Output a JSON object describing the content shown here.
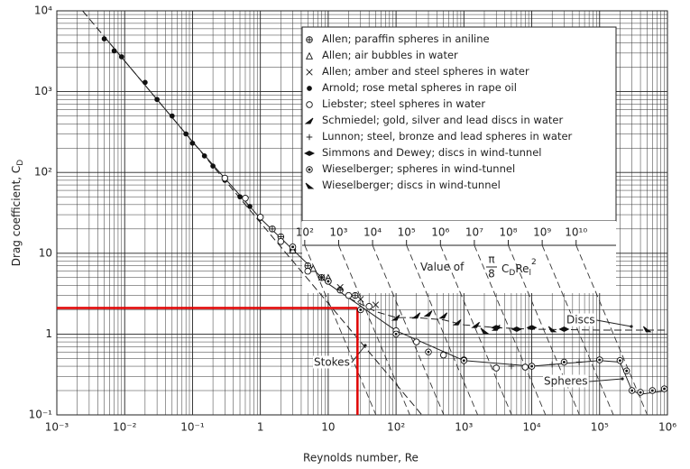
{
  "chart_data": {
    "type": "scatter",
    "xlabel": "Reynolds number, Re",
    "ylabel": "Drag coefficient, C",
    "ylabel_sub": "D",
    "log_x": true,
    "log_y": true,
    "grid": true,
    "minor_grid": true,
    "xlim": [
      0.001,
      1000000
    ],
    "ylim": [
      0.1,
      10000
    ],
    "xticks": [
      {
        "value": 0.001,
        "label": "10⁻³"
      },
      {
        "value": 0.01,
        "label": "10⁻²"
      },
      {
        "value": 0.1,
        "label": "10⁻¹"
      },
      1,
      10,
      {
        "value": 100,
        "label": "10²"
      },
      {
        "value": 1000,
        "label": "10³"
      },
      {
        "value": 10000,
        "label": "10⁴"
      },
      {
        "value": 100000,
        "label": "10⁵"
      },
      {
        "value": 1000000,
        "label": "10⁶"
      }
    ],
    "yticks": [
      {
        "value": 0.1,
        "label": "10⁻¹"
      },
      1,
      10,
      {
        "value": 100,
        "label": "10²"
      },
      {
        "value": 1000,
        "label": "10³"
      },
      {
        "value": 10000,
        "label": "10⁴"
      }
    ],
    "legend": "upper right",
    "series": [
      {
        "name": "Allen; paraffin spheres in aniline",
        "marker": "circle-plus",
        "color": "#111111",
        "x": [
          1.5,
          2,
          3,
          5,
          8,
          15,
          25
        ],
        "values": [
          20,
          16,
          11,
          7,
          5,
          3.5,
          3
        ]
      },
      {
        "name": "Allen; air bubbles in water",
        "marker": "triangle",
        "color": "#111111",
        "x": [
          3,
          6,
          10
        ],
        "values": [
          11,
          6.5,
          5
        ]
      },
      {
        "name": "Allen; amber and steel spheres in water",
        "marker": "x",
        "color": "#111111",
        "x": [
          8,
          15,
          30,
          50
        ],
        "values": [
          5,
          3.8,
          2.7,
          2.3
        ]
      },
      {
        "name": "Arnold; rose metal spheres in rape oil",
        "marker": "dot",
        "color": "#111111",
        "x": [
          0.005,
          0.007,
          0.009,
          0.02,
          0.03,
          0.05,
          0.08,
          0.1,
          0.15,
          0.2,
          0.3,
          0.5,
          0.7,
          1
        ],
        "values": [
          4500,
          3200,
          2700,
          1300,
          800,
          500,
          300,
          230,
          160,
          120,
          80,
          50,
          38,
          27
        ]
      },
      {
        "name": "Liebster; steel spheres in water",
        "marker": "circle",
        "color": "#111111",
        "x": [
          0.3,
          0.6,
          1,
          2,
          5,
          10,
          20,
          40,
          100,
          200,
          500,
          1000,
          3000,
          8000
        ],
        "values": [
          85,
          48,
          28,
          14,
          6,
          4.5,
          3,
          2.2,
          1.1,
          0.8,
          0.55,
          0.48,
          0.38,
          0.39
        ]
      },
      {
        "name": "Schmiedel; gold, silver and lead discs in water",
        "marker": "wedge",
        "color": "#111111",
        "x": [
          100,
          200,
          300,
          500,
          800,
          1500,
          3000
        ],
        "values": [
          1.6,
          1.7,
          1.8,
          1.7,
          1.4,
          1.3,
          1.2
        ]
      },
      {
        "name": "Lunnon; steel, bronze and lead spheres in water",
        "marker": "plus",
        "color": "#111111",
        "x": [
          1000,
          5000,
          20000,
          50000
        ],
        "values": [
          0.45,
          0.4,
          0.42,
          0.45
        ]
      },
      {
        "name": "Simmons and Dewey; discs in wind-tunnel",
        "marker": "diamond",
        "color": "#111111",
        "x": [
          3000,
          6000,
          10000,
          30000
        ],
        "values": [
          1.2,
          1.15,
          1.2,
          1.15
        ]
      },
      {
        "name": "Wieselberger; spheres in wind-tunnel",
        "marker": "circle-dot",
        "color": "#111111",
        "x": [
          3,
          10,
          30,
          100,
          300,
          1000,
          10000,
          30000,
          100000,
          200000,
          250000,
          300000,
          400000,
          600000,
          900000
        ],
        "values": [
          12,
          4.5,
          2,
          1,
          0.6,
          0.47,
          0.4,
          0.45,
          0.48,
          0.47,
          0.35,
          0.2,
          0.19,
          0.2,
          0.21
        ]
      },
      {
        "name": "Wieselberger; discs in wind-tunnel",
        "marker": "wedge2",
        "color": "#111111",
        "x": [
          2000,
          20000,
          500000
        ],
        "values": [
          1.1,
          1.15,
          1.15
        ]
      }
    ],
    "curves": [
      {
        "name": "Stokes",
        "dash": true,
        "x": [
          0.0024,
          240
        ],
        "values": [
          10000,
          0.1
        ]
      },
      {
        "name": "Spheres",
        "dash": false,
        "x": [
          0.005,
          0.1,
          1,
          10,
          100,
          1000,
          10000,
          100000,
          200000,
          300000,
          400000,
          1000000
        ],
        "values": [
          4800,
          240,
          27,
          4.2,
          1.1,
          0.47,
          0.4,
          0.47,
          0.45,
          0.2,
          0.18,
          0.2
        ]
      },
      {
        "name": "Discs",
        "dash": true,
        "x": [
          20,
          50,
          100,
          200,
          500,
          1000,
          3000,
          10000,
          100000,
          1000000
        ],
        "values": [
          2.8,
          1.9,
          1.6,
          1.6,
          1.5,
          1.3,
          1.2,
          1.15,
          1.12,
          1.12
        ]
      }
    ],
    "highlight": {
      "x": 27,
      "y": 2.1,
      "color": "#e00000"
    },
    "inset": {
      "label": "Value of",
      "numerator": "π",
      "denominator": "8",
      "symbol": "C",
      "symbol_sub": "D",
      "symbol2": "Re",
      "symbol2_sub": "l",
      "exponent": "2",
      "ticks": [
        {
          "value": 100,
          "label": "10²"
        },
        {
          "value": 1000,
          "label": "10³"
        },
        {
          "value": 10000,
          "label": "10⁴"
        },
        {
          "value": 100000,
          "label": "10⁵"
        },
        {
          "value": 1000000,
          "label": "10⁶"
        },
        {
          "value": 10000000,
          "label": "10⁷"
        },
        {
          "value": 100000000,
          "label": "10⁸"
        },
        {
          "value": 1000000000,
          "label": "10⁹"
        },
        {
          "value": 10000000000,
          "label": "10¹⁰"
        }
      ]
    }
  }
}
